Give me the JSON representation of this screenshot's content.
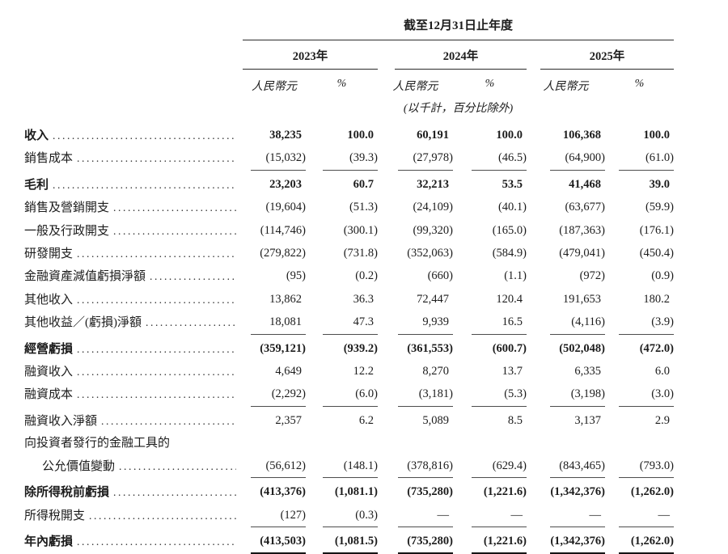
{
  "page": {
    "background": "#ffffff",
    "text_color": "#1c1c1c"
  },
  "header": {
    "period_title": "截至12月31日止年度",
    "years": [
      "2023年",
      "2024年",
      "2025年"
    ],
    "currency_label": "人民幣元",
    "percent_label": "%",
    "unit_note": "(以千計，百分比除外)"
  },
  "rows": [
    {
      "label": "收入",
      "bold": true,
      "indent": false,
      "leader": true,
      "underline": "none",
      "values": [
        "38,235",
        "100.0",
        "60,191",
        "100.0",
        "106,368",
        "100.0"
      ]
    },
    {
      "label": "銷售成本",
      "bold": false,
      "indent": false,
      "leader": true,
      "underline": "single",
      "values": [
        "(15,032)",
        "(39.3)",
        "(27,978)",
        "(46.5)",
        "(64,900)",
        "(61.0)"
      ]
    },
    {
      "label": "毛利",
      "bold": true,
      "indent": false,
      "leader": true,
      "underline": "none",
      "values": [
        "23,203",
        "60.7",
        "32,213",
        "53.5",
        "41,468",
        "39.0"
      ]
    },
    {
      "label": "銷售及營銷開支",
      "bold": false,
      "indent": false,
      "leader": true,
      "underline": "none",
      "values": [
        "(19,604)",
        "(51.3)",
        "(24,109)",
        "(40.1)",
        "(63,677)",
        "(59.9)"
      ]
    },
    {
      "label": "一般及行政開支",
      "bold": false,
      "indent": false,
      "leader": true,
      "underline": "none",
      "values": [
        "(114,746)",
        "(300.1)",
        "(99,320)",
        "(165.0)",
        "(187,363)",
        "(176.1)"
      ]
    },
    {
      "label": "研發開支",
      "bold": false,
      "indent": false,
      "leader": true,
      "underline": "none",
      "values": [
        "(279,822)",
        "(731.8)",
        "(352,063)",
        "(584.9)",
        "(479,041)",
        "(450.4)"
      ]
    },
    {
      "label": "金融資產減值虧損淨額",
      "bold": false,
      "indent": false,
      "leader": true,
      "underline": "none",
      "values": [
        "(95)",
        "(0.2)",
        "(660)",
        "(1.1)",
        "(972)",
        "(0.9)"
      ]
    },
    {
      "label": "其他收入",
      "bold": false,
      "indent": false,
      "leader": true,
      "underline": "none",
      "values": [
        "13,862",
        "36.3",
        "72,447",
        "120.4",
        "191,653",
        "180.2"
      ]
    },
    {
      "label": "其他收益／(虧損)淨額",
      "bold": false,
      "indent": false,
      "leader": true,
      "underline": "single",
      "values": [
        "18,081",
        "47.3",
        "9,939",
        "16.5",
        "(4,116)",
        "(3.9)"
      ]
    },
    {
      "label": "經營虧損",
      "bold": true,
      "indent": false,
      "leader": true,
      "underline": "none",
      "values": [
        "(359,121)",
        "(939.2)",
        "(361,553)",
        "(600.7)",
        "(502,048)",
        "(472.0)"
      ]
    },
    {
      "label": "融資收入",
      "bold": false,
      "indent": false,
      "leader": true,
      "underline": "none",
      "values": [
        "4,649",
        "12.2",
        "8,270",
        "13.7",
        "6,335",
        "6.0"
      ]
    },
    {
      "label": "融資成本",
      "bold": false,
      "indent": false,
      "leader": true,
      "underline": "single",
      "values": [
        "(2,292)",
        "(6.0)",
        "(3,181)",
        "(5.3)",
        "(3,198)",
        "(3.0)"
      ]
    },
    {
      "label": "融資收入淨額",
      "bold": false,
      "indent": false,
      "leader": true,
      "underline": "none",
      "values": [
        "2,357",
        "6.2",
        "5,089",
        "8.5",
        "3,137",
        "2.9"
      ]
    },
    {
      "label": "向投資者發行的金融工具的",
      "bold": false,
      "indent": false,
      "leader": false,
      "underline": "none",
      "values": null
    },
    {
      "label": "公允價值變動",
      "bold": false,
      "indent": true,
      "leader": true,
      "underline": "single",
      "values": [
        "(56,612)",
        "(148.1)",
        "(378,816)",
        "(629.4)",
        "(843,465)",
        "(793.0)"
      ]
    },
    {
      "label": "除所得稅前虧損",
      "bold": true,
      "indent": false,
      "leader": true,
      "underline": "none",
      "values": [
        "(413,376)",
        "(1,081.1)",
        "(735,280)",
        "(1,221.6)",
        "(1,342,376)",
        "(1,262.0)"
      ]
    },
    {
      "label": "所得稅開支",
      "bold": false,
      "indent": false,
      "leader": true,
      "underline": "single",
      "values": [
        "(127)",
        "(0.3)",
        "—",
        "—",
        "—",
        "—"
      ]
    },
    {
      "label": "年內虧損",
      "bold": true,
      "indent": false,
      "leader": true,
      "underline": "double",
      "values": [
        "(413,503)",
        "(1,081.5)",
        "(735,280)",
        "(1,221.6)",
        "(1,342,376)",
        "(1,262.0)"
      ]
    }
  ]
}
